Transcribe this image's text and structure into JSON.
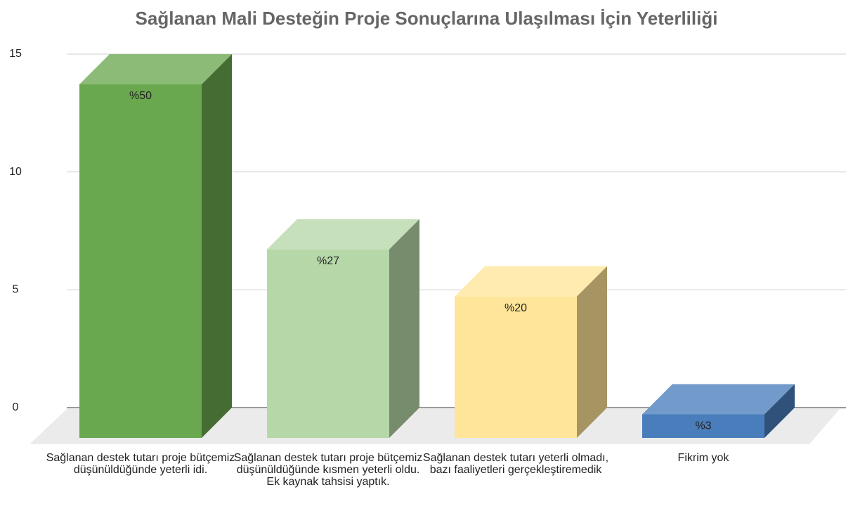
{
  "chart_data": {
    "type": "bar3d",
    "title": "Sağlanan Mali Desteğin Proje Sonuçlarına Ulaşılması İçin Yeterliliği",
    "categories": [
      "Sağlanan destek tutarı proje bütçemiz düşünüldüğünde yeterli idi.",
      "Sağlanan destek tutarı proje bütçemiz düşünüldüğünde kısmen yeterli oldu. Ek kaynak tahsisi yaptık.",
      "Sağlanan destek tutarı yeterli olmadı, bazı faaliyetleri gerçekleştiremedik",
      "Fikrim yok"
    ],
    "values": [
      15,
      8,
      6,
      1
    ],
    "value_labels": [
      "%50",
      "%27",
      "%20",
      "%3"
    ],
    "colors": [
      "#6aa84f",
      "#b6d7a8",
      "#ffe599",
      "#4a7dbb"
    ],
    "ylim": [
      0,
      15
    ],
    "yticks": [
      0,
      5,
      10,
      15
    ],
    "grid": true
  }
}
